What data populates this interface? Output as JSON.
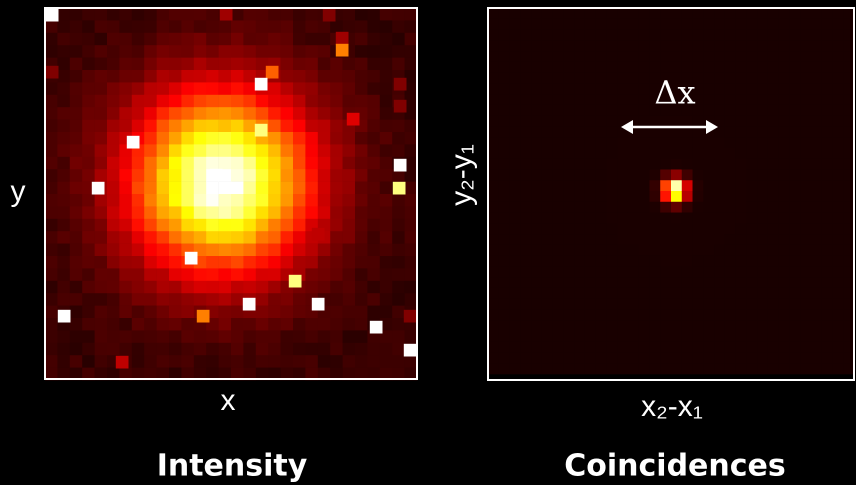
{
  "panels": [
    {
      "y_label": "y",
      "x_label": "x",
      "caption": "Intensity"
    },
    {
      "y_label": "y₂-y₁",
      "x_label": "x₂-x₁",
      "caption": "Coincidences",
      "annotation": "Δx"
    }
  ]
}
